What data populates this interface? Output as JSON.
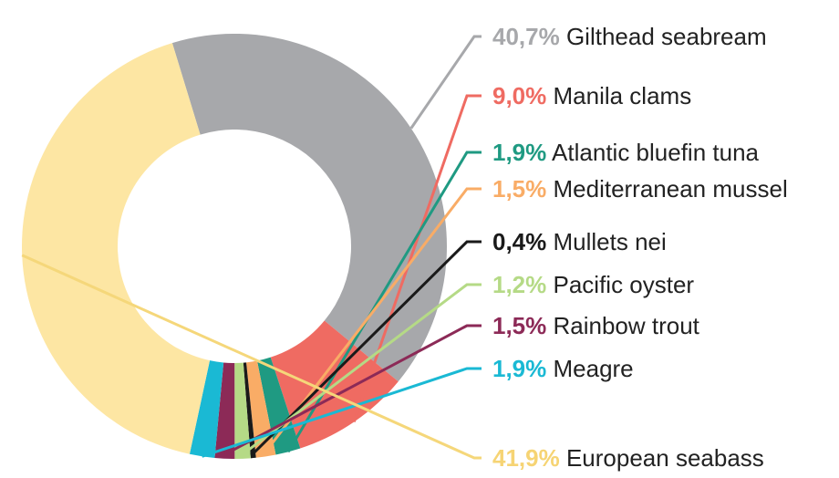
{
  "chart_data": {
    "type": "pie",
    "donut": true,
    "slices": [
      {
        "label": "Gilthead seabream",
        "value_label": "40,7%",
        "value": 40.7,
        "color": "#a7a8ab"
      },
      {
        "label": "Manila clams",
        "value_label": "9,0%",
        "value": 9.0,
        "color": "#ef6b62"
      },
      {
        "label": "Atlantic bluefin tuna",
        "value_label": "1,9%",
        "value": 1.9,
        "color": "#1f9a82"
      },
      {
        "label": "Mediterranean mussel",
        "value_label": "1,5%",
        "value": 1.5,
        "color": "#f9ac66"
      },
      {
        "label": "Mullets nei",
        "value_label": "0,4%",
        "value": 0.4,
        "color": "#1a1a1a"
      },
      {
        "label": "Pacific oyster",
        "value_label": "1,2%",
        "value": 1.2,
        "color": "#b5da86"
      },
      {
        "label": "Rainbow trout",
        "value_label": "1,5%",
        "value": 1.5,
        "color": "#8c2a57"
      },
      {
        "label": "Meagre",
        "value_label": "1,9%",
        "value": 1.9,
        "color": "#1ab9d4"
      },
      {
        "label": "European seabass",
        "value_label": "41,9%",
        "value": 41.9,
        "color": "#fde6a3"
      }
    ]
  }
}
